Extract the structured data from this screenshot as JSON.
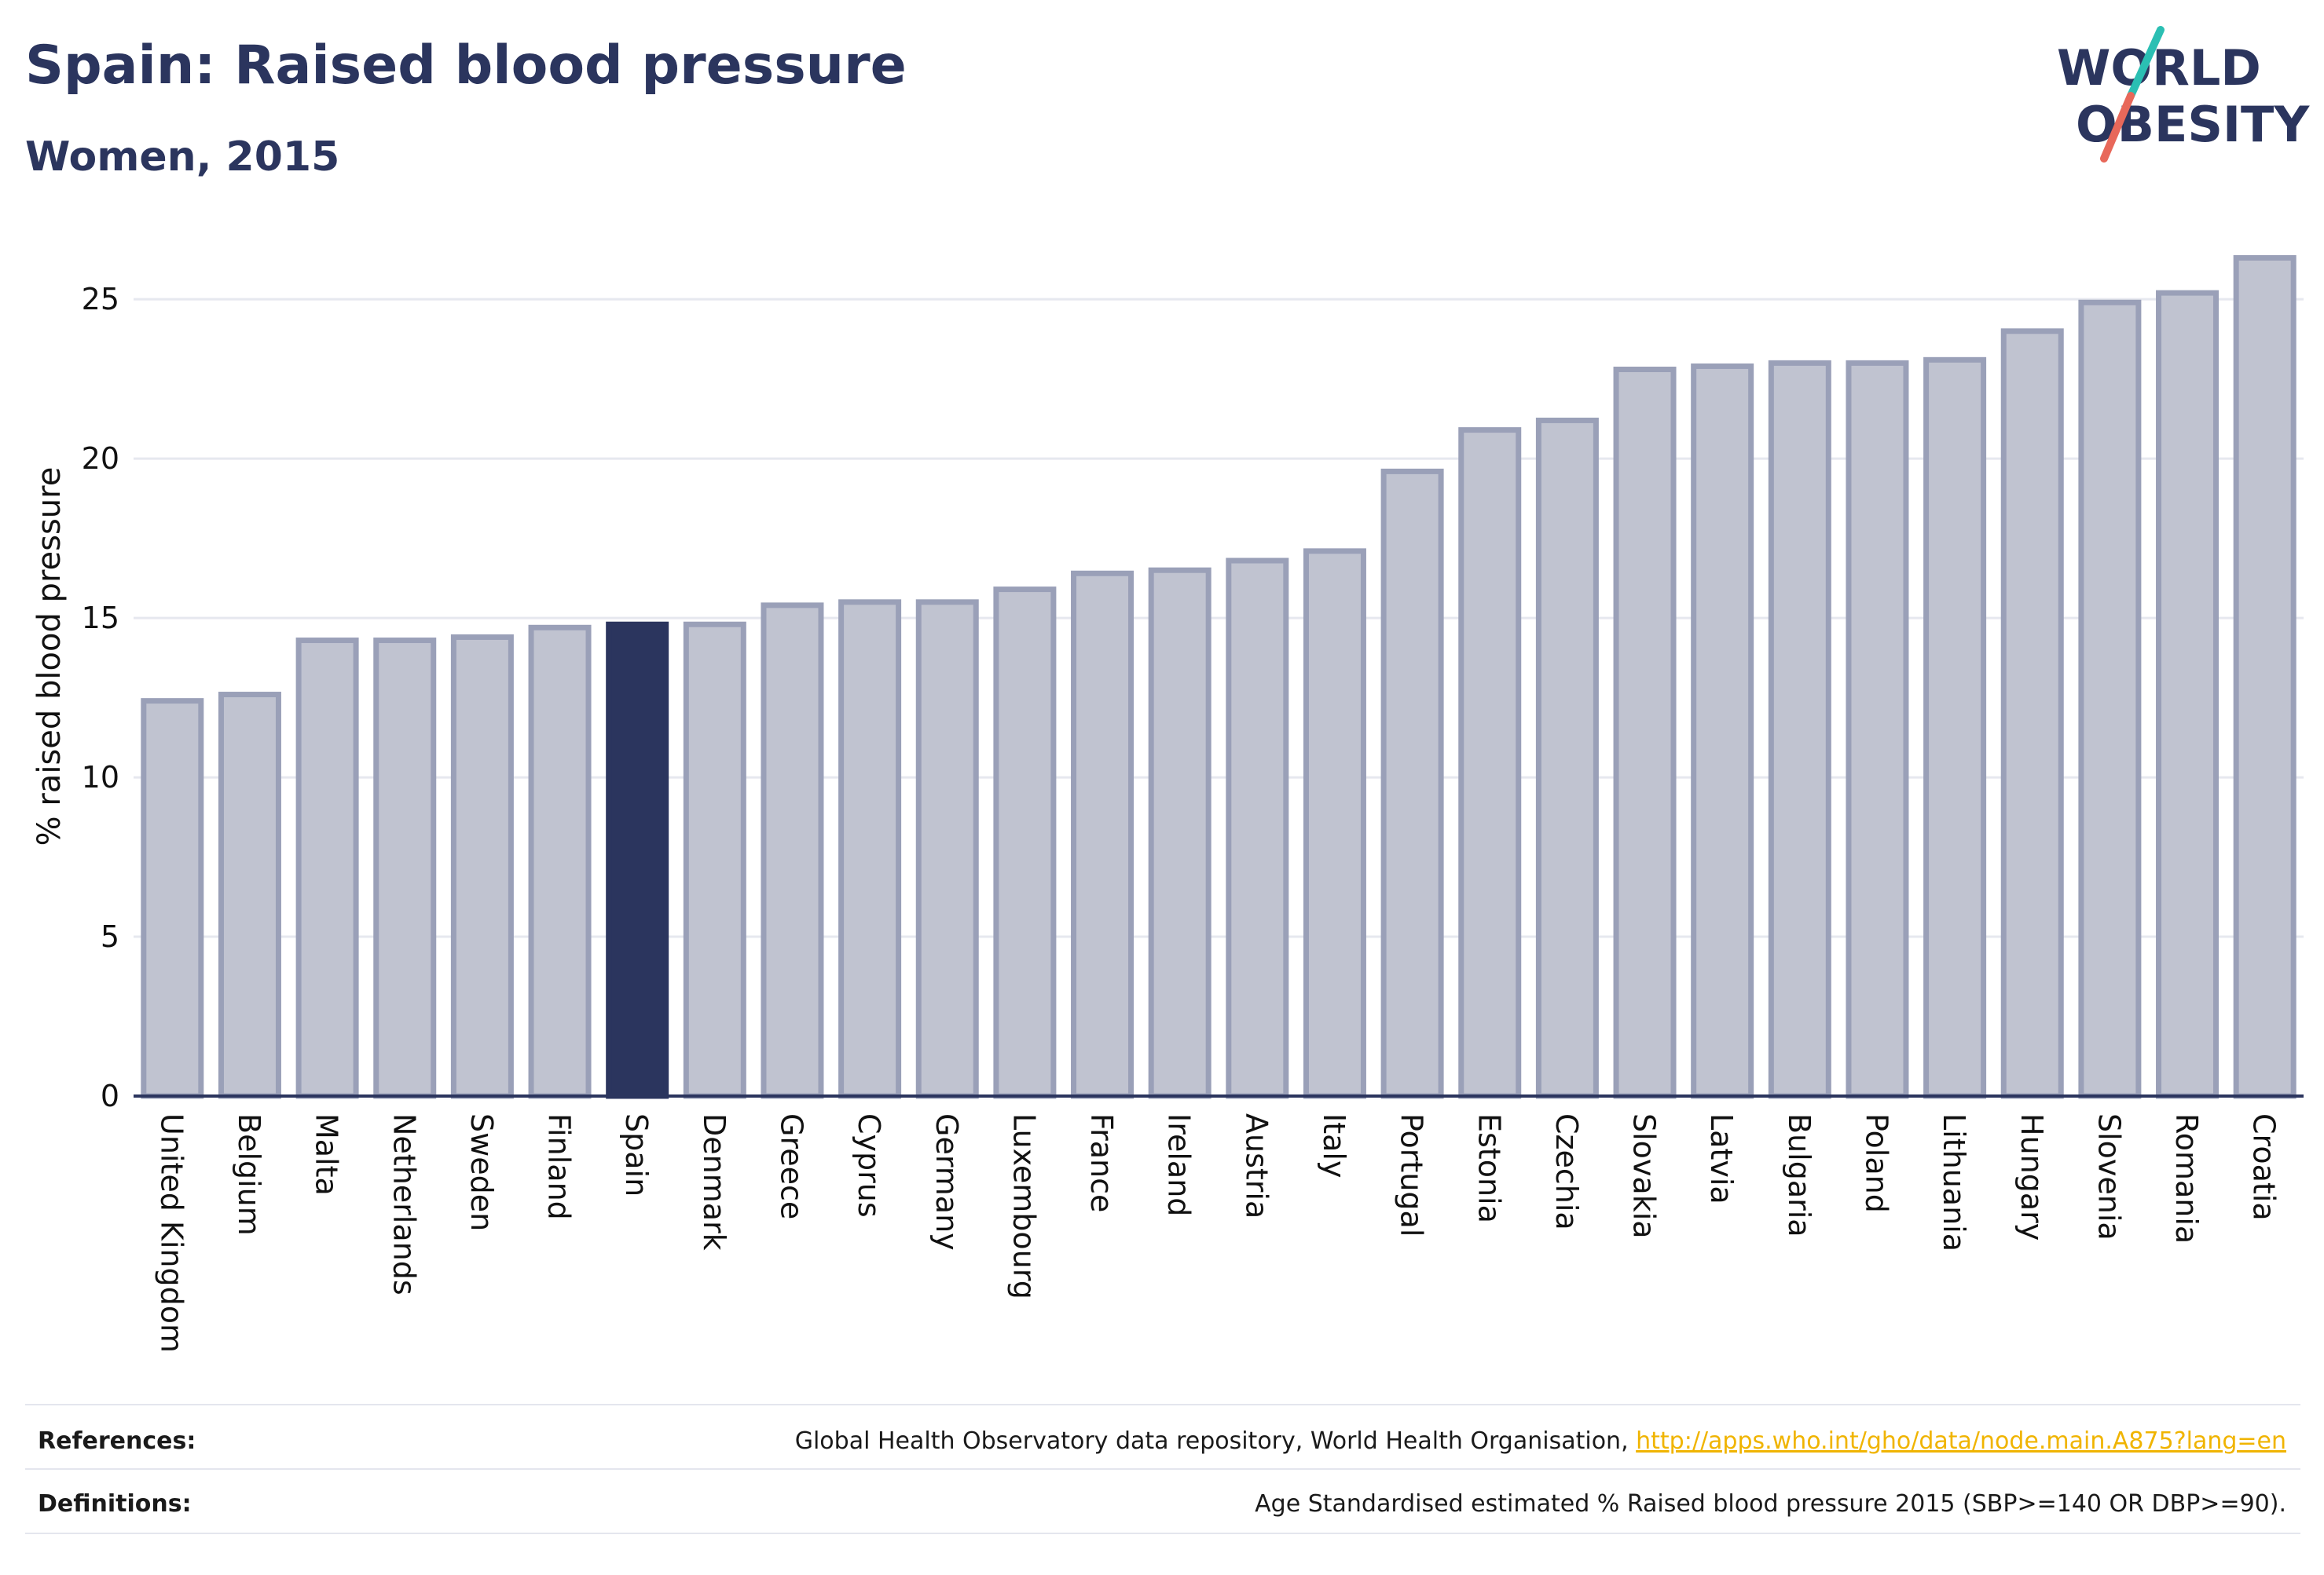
{
  "header": {
    "title": "Spain: Raised blood pressure",
    "subtitle": "Women, 2015"
  },
  "logo": {
    "line1": "WORLD",
    "line2": "OBESITY",
    "slash_color_top": "#2bbfb3",
    "slash_color_bottom": "#e8685a"
  },
  "colors": {
    "bar": "#c0c3d0",
    "bar_border": "#9aa0b8",
    "highlight": "#2b355e",
    "axis_text": "#111111",
    "grid": "#e6e8ef"
  },
  "chart_data": {
    "type": "bar",
    "categories": [
      "United Kingdom",
      "Belgium",
      "Malta",
      "Netherlands",
      "Sweden",
      "Finland",
      "Spain",
      "Denmark",
      "Greece",
      "Cyprus",
      "Germany",
      "Luxembourg",
      "France",
      "Ireland",
      "Austria",
      "Italy",
      "Portugal",
      "Estonia",
      "Czechia",
      "Slovakia",
      "Latvia",
      "Bulgaria",
      "Poland",
      "Lithuania",
      "Hungary",
      "Slovenia",
      "Romania",
      "Croatia"
    ],
    "values": [
      12.4,
      12.6,
      14.3,
      14.3,
      14.4,
      14.7,
      14.8,
      14.8,
      15.4,
      15.5,
      15.5,
      15.9,
      16.4,
      16.5,
      16.8,
      17.1,
      19.6,
      20.9,
      21.2,
      22.8,
      22.9,
      23.0,
      23.0,
      23.1,
      24.0,
      24.9,
      25.2,
      26.3
    ],
    "highlight": "Spain",
    "ylabel": "% raised blood pressure",
    "ylim": [
      0,
      27
    ],
    "yticks": [
      0,
      5,
      10,
      15,
      20,
      25
    ],
    "grid": true
  },
  "footer": {
    "references_label": "References:",
    "references_text": "Global Health Observatory data repository, World Health Organisation, ",
    "references_link": "http://apps.who.int/gho/data/node.main.A875?lang=en",
    "definitions_label": "Definitions:",
    "definitions_text": "Age Standardised estimated % Raised blood pressure 2015 (SBP>=140 OR DBP>=90)."
  }
}
